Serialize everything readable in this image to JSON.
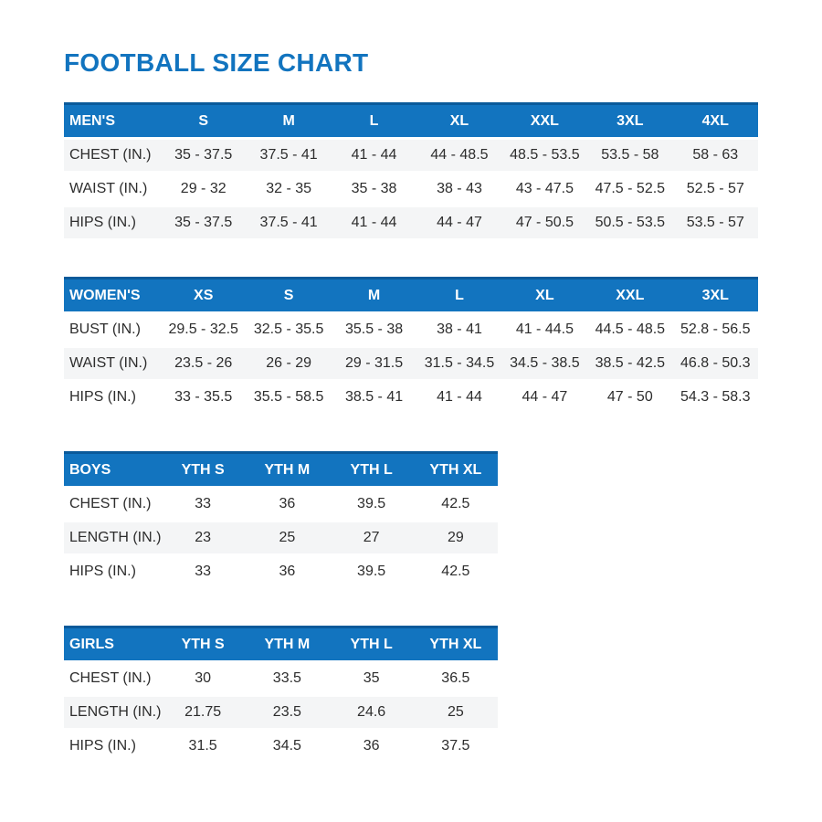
{
  "page": {
    "title": "FOOTBALL SIZE CHART"
  },
  "colors": {
    "accent_blue": "#1274bf",
    "header_top_border_blue": "#0a5a9a",
    "stripe_gray": "#f4f5f6",
    "text_dark": "#2d2d2d"
  },
  "tables": [
    {
      "name": "MEN'S",
      "columns": [
        "S",
        "M",
        "L",
        "XL",
        "XXL",
        "3XL",
        "4XL"
      ],
      "rows": [
        {
          "label": "CHEST (IN.)",
          "values": [
            "35 - 37.5",
            "37.5 - 41",
            "41 - 44",
            "44 - 48.5",
            "48.5 - 53.5",
            "53.5 - 58",
            "58 - 63"
          ]
        },
        {
          "label": "WAIST (IN.)",
          "values": [
            "29 - 32",
            "32 - 35",
            "35 - 38",
            "38 - 43",
            "43 - 47.5",
            "47.5 - 52.5",
            "52.5 - 57"
          ]
        },
        {
          "label": "HIPS (IN.)",
          "values": [
            "35 - 37.5",
            "37.5 - 41",
            "41 - 44",
            "44 - 47",
            "47 - 50.5",
            "50.5 - 53.5",
            "53.5 - 57"
          ]
        }
      ]
    },
    {
      "name": "WOMEN'S",
      "columns": [
        "XS",
        "S",
        "M",
        "L",
        "XL",
        "XXL",
        "3XL"
      ],
      "rows": [
        {
          "label": "BUST (IN.)",
          "values": [
            "29.5 - 32.5",
            "32.5 - 35.5",
            "35.5 - 38",
            "38 - 41",
            "41 - 44.5",
            "44.5 - 48.5",
            "52.8 - 56.5"
          ]
        },
        {
          "label": "WAIST (IN.)",
          "values": [
            "23.5 - 26",
            "26 - 29",
            "29 - 31.5",
            "31.5 - 34.5",
            "34.5 - 38.5",
            "38.5 - 42.5",
            "46.8 - 50.3"
          ]
        },
        {
          "label": "HIPS (IN.)",
          "values": [
            "33 - 35.5",
            "35.5 - 58.5",
            "38.5 - 41",
            "41 - 44",
            "44 - 47",
            "47 - 50",
            "54.3 - 58.3"
          ]
        }
      ]
    },
    {
      "name": "BOYS",
      "columns": [
        "YTH S",
        "YTH M",
        "YTH L",
        "YTH XL"
      ],
      "rows": [
        {
          "label": "CHEST (IN.)",
          "values": [
            "33",
            "36",
            "39.5",
            "42.5"
          ]
        },
        {
          "label": "LENGTH (IN.)",
          "values": [
            "23",
            "25",
            "27",
            "29"
          ]
        },
        {
          "label": "HIPS (IN.)",
          "values": [
            "33",
            "36",
            "39.5",
            "42.5"
          ]
        }
      ]
    },
    {
      "name": "GIRLS",
      "columns": [
        "YTH S",
        "YTH M",
        "YTH L",
        "YTH XL"
      ],
      "rows": [
        {
          "label": "CHEST (IN.)",
          "values": [
            "30",
            "33.5",
            "35",
            "36.5"
          ]
        },
        {
          "label": "LENGTH (IN.)",
          "values": [
            "21.75",
            "23.5",
            "24.6",
            "25"
          ]
        },
        {
          "label": "HIPS (IN.)",
          "values": [
            "31.5",
            "34.5",
            "36",
            "37.5"
          ]
        }
      ]
    }
  ]
}
